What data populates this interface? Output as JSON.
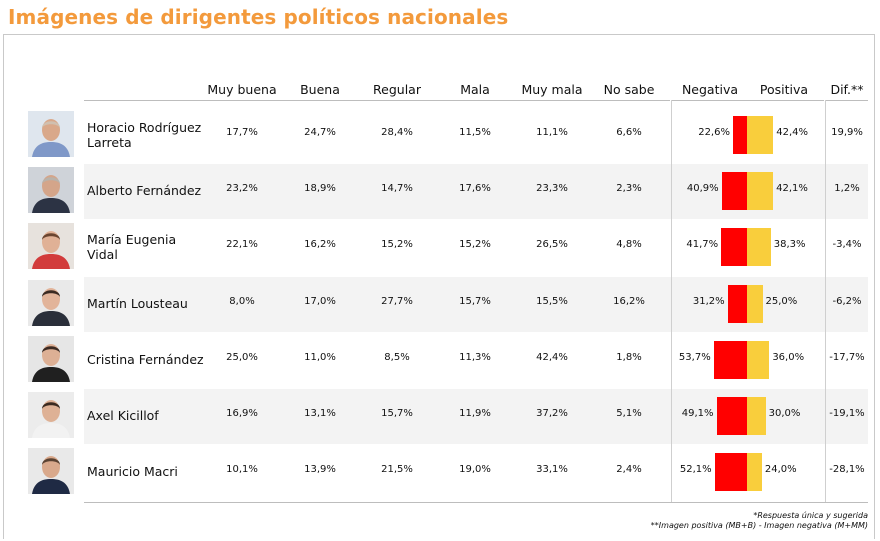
{
  "title": "Imágenes de dirigentes políticos nacionales",
  "headers": {
    "muy_buena": "Muy buena",
    "buena": "Buena",
    "regular": "Regular",
    "mala": "Mala",
    "muy_mala": "Muy mala",
    "no_sabe": "No sabe",
    "negativa": "Negativa",
    "positiva": "Positiva",
    "dif": "Dif.**"
  },
  "rows": [
    {
      "name": "Horacio Rodríguez Larreta",
      "muy_buena": "17,7%",
      "buena": "24,7%",
      "regular": "28,4%",
      "mala": "11,5%",
      "muy_mala": "11,1%",
      "no_sabe": "6,6%",
      "negativa_label": "22,6%",
      "positiva_label": "42,4%",
      "dif": "19,9%"
    },
    {
      "name": "Alberto Fernández",
      "muy_buena": "23,2%",
      "buena": "18,9%",
      "regular": "14,7%",
      "mala": "17,6%",
      "muy_mala": "23,3%",
      "no_sabe": "2,3%",
      "negativa_label": "40,9%",
      "positiva_label": "42,1%",
      "dif": "1,2%"
    },
    {
      "name": "María Eugenia Vidal",
      "muy_buena": "22,1%",
      "buena": "16,2%",
      "regular": "15,2%",
      "mala": "15,2%",
      "muy_mala": "26,5%",
      "no_sabe": "4,8%",
      "negativa_label": "41,7%",
      "positiva_label": "38,3%",
      "dif": "-3,4%"
    },
    {
      "name": "Martín Lousteau",
      "muy_buena": "8,0%",
      "buena": "17,0%",
      "regular": "27,7%",
      "mala": "15,7%",
      "muy_mala": "15,5%",
      "no_sabe": "16,2%",
      "negativa_label": "31,2%",
      "positiva_label": "25,0%",
      "dif": "-6,2%"
    },
    {
      "name": "Cristina Fernández",
      "muy_buena": "25,0%",
      "buena": "11,0%",
      "regular": "8,5%",
      "mala": "11,3%",
      "muy_mala": "42,4%",
      "no_sabe": "1,8%",
      "negativa_label": "53,7%",
      "positiva_label": "36,0%",
      "dif": "-17,7%"
    },
    {
      "name": "Axel Kicillof",
      "muy_buena": "16,9%",
      "buena": "13,1%",
      "regular": "15,7%",
      "mala": "11,9%",
      "muy_mala": "37,2%",
      "no_sabe": "5,1%",
      "negativa_label": "49,1%",
      "positiva_label": "30,0%",
      "dif": "-19,1%"
    },
    {
      "name": "Mauricio Macri",
      "muy_buena": "10,1%",
      "buena": "13,9%",
      "regular": "21,5%",
      "mala": "19,0%",
      "muy_mala": "33,1%",
      "no_sabe": "2,4%",
      "negativa_label": "52,1%",
      "positiva_label": "24,0%",
      "dif": "-28,1%"
    }
  ],
  "chart_data": {
    "type": "bar",
    "categories": [
      "Horacio Rodríguez Larreta",
      "Alberto Fernández",
      "María Eugenia Vidal",
      "Martín Lousteau",
      "Cristina Fernández",
      "Axel Kicillof",
      "Mauricio Macri"
    ],
    "series": [
      {
        "name": "Negativa",
        "values": [
          22.6,
          40.9,
          41.7,
          31.2,
          53.7,
          49.1,
          52.1
        ],
        "color": "#ff0000"
      },
      {
        "name": "Positiva",
        "values": [
          42.4,
          42.1,
          38.3,
          25.0,
          36.0,
          30.0,
          24.0
        ],
        "color": "#f9ce3c"
      }
    ],
    "orientation": "horizontal-diverging"
  },
  "footnotes": {
    "line1": "*Respuesta única y sugerida",
    "line2": "**Imagen positiva (MB+B) - Imagen negativa (M+MM)"
  },
  "colors": {
    "title": "#f39a3c",
    "negative": "#ff0000",
    "positive": "#f9ce3c",
    "row_alt": "#f3f3f3"
  }
}
